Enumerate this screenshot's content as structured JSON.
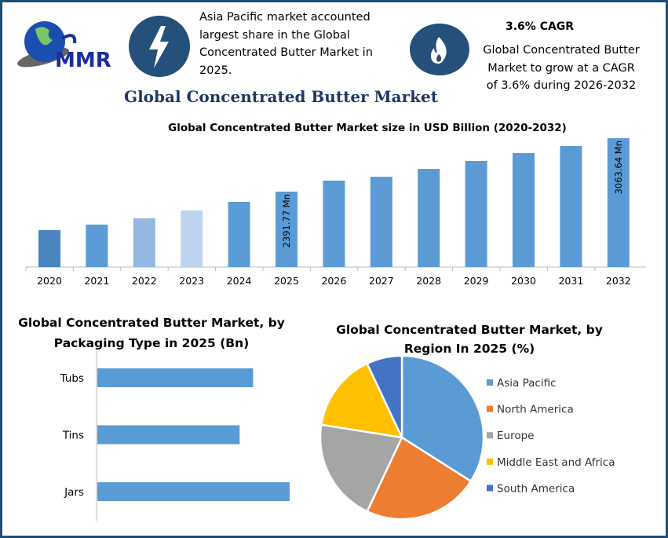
{
  "header": {
    "logo_text": "MMR",
    "highlight_text": "Asia Pacific market accounted largest share in the Global Concentrated Butter Market in 2025.",
    "cagr_heading": "3.6% CAGR",
    "cagr_text": "Global Concentrated Butter Market to grow at a CAGR of 3.6% during 2026-2032",
    "icons": [
      "lightning-icon",
      "flame-icon"
    ],
    "icon_color": "#24507a"
  },
  "main_title": "Global Concentrated Butter Market",
  "chart_data": [
    {
      "type": "bar",
      "title": "Global Concentrated Butter Market size in USD Billion (2020-2032)",
      "categories": [
        "2020",
        "2021",
        "2022",
        "2023",
        "2024",
        "2025",
        "2026",
        "2027",
        "2028",
        "2029",
        "2030",
        "2031",
        "2032"
      ],
      "values": [
        1907,
        1977,
        2056,
        2155,
        2263,
        2391.77,
        2530,
        2579,
        2678,
        2777,
        2876,
        2965,
        3063.64
      ],
      "data_labels": {
        "2025": "2391.77 Mn",
        "2032": "3063.64 Mn"
      },
      "colors": [
        "#4a86bd",
        "#5b9bd5",
        "#95b8e0",
        "#bed3ee",
        "#5b9bd5",
        "#5b9bd5",
        "#5b9bd5",
        "#5b9bd5",
        "#5b9bd5",
        "#5b9bd5",
        "#5b9bd5",
        "#5b9bd5",
        "#5b9bd5"
      ],
      "ylim": [
        1443,
        3200
      ],
      "grid": false
    },
    {
      "type": "bar",
      "orientation": "horizontal",
      "title": "Global Concentrated Butter Market, by Packaging Type in 2025 (Bn)",
      "categories": [
        "Tubs",
        "Tins",
        "Jars"
      ],
      "values": [
        0.81,
        0.74,
        1.0
      ],
      "color": "#5b9bd5"
    },
    {
      "type": "pie",
      "title": "Global Concentrated Butter Market, by Region In 2025 (%)",
      "labels": [
        "Asia Pacific",
        "North America",
        "Europe",
        "Middle East and Africa",
        "South America"
      ],
      "values": [
        34,
        23,
        20.5,
        15.5,
        7
      ],
      "colors": [
        "#5b9bd5",
        "#ed7d31",
        "#a5a5a5",
        "#ffc000",
        "#4472c4"
      ],
      "legend": "right"
    }
  ]
}
